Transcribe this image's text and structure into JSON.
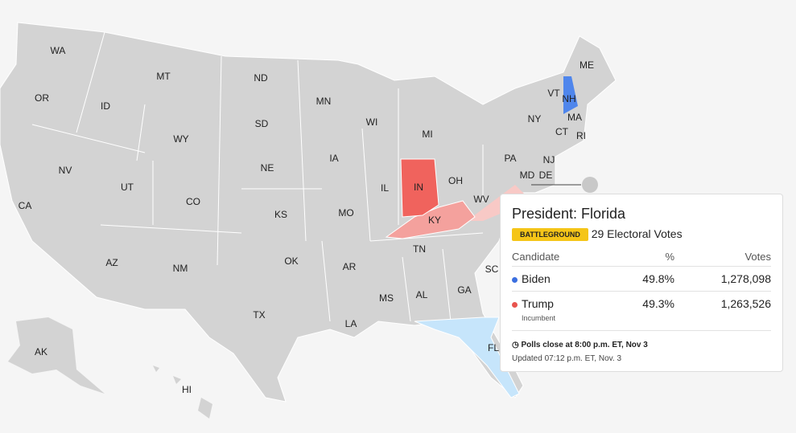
{
  "map": {
    "states": [
      "WA",
      "OR",
      "CA",
      "NV",
      "ID",
      "MT",
      "WY",
      "UT",
      "CO",
      "AZ",
      "NM",
      "ND",
      "SD",
      "NE",
      "KS",
      "OK",
      "TX",
      "MN",
      "IA",
      "MO",
      "AR",
      "LA",
      "WI",
      "IL",
      "MS",
      "MI",
      "IN",
      "KY",
      "TN",
      "AL",
      "OH",
      "WV",
      "GA",
      "PA",
      "NY",
      "VT",
      "NH",
      "ME",
      "MA",
      "CT",
      "RI",
      "NJ",
      "DE",
      "MD",
      "SC",
      "FL",
      "AK",
      "HI"
    ]
  },
  "tooltip": {
    "title": "President: Florida",
    "badge": "BATTLEGROUND",
    "electoral_votes": "29 Electoral Votes",
    "table": {
      "header": [
        "Candidate",
        "%",
        "Votes"
      ],
      "rows": [
        {
          "name": "Biden",
          "color": "#3b6fe0",
          "pct": "49.8%",
          "votes": "1,278,098"
        },
        {
          "name": "Trump",
          "color": "#e8544e",
          "note": "Incumbent",
          "pct": "49.3%",
          "votes": "1,263,526"
        }
      ]
    },
    "polls_close": "Polls close at 8:00 p.m. ET, Nov 3",
    "updated": "Updated 07:12 p.m. ET, Nov. 3"
  }
}
